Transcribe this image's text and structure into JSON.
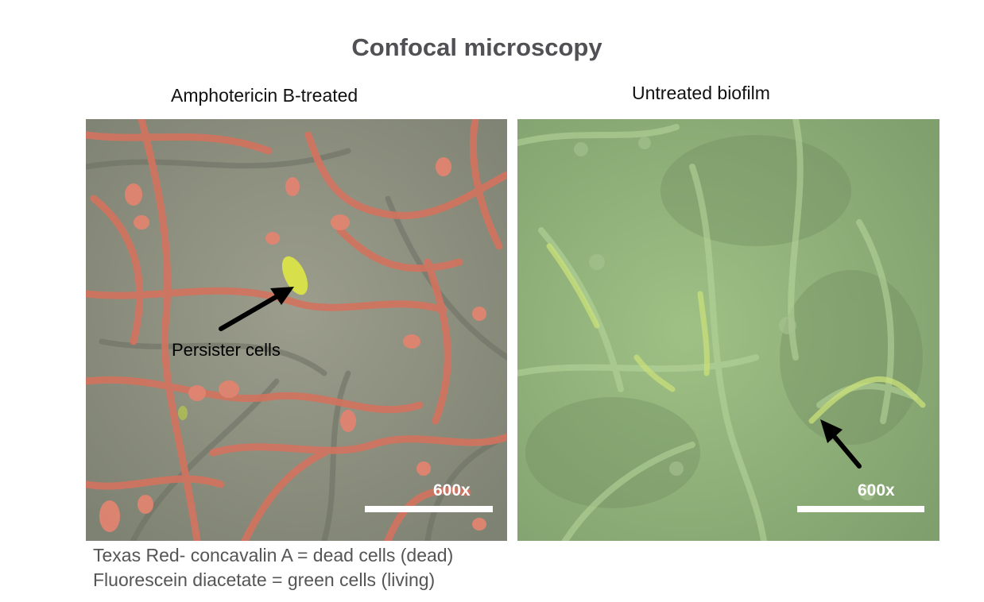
{
  "figure": {
    "title": "Confocal microscopy",
    "panels": [
      {
        "label": "Amphotericin B-treated",
        "scale_label": "600x",
        "annotation": "Persister cells",
        "tint": "#c9705f"
      },
      {
        "label": "Untreated biofilm",
        "scale_label": "600x",
        "tint": "#a9d98a"
      }
    ],
    "legend": [
      "Texas Red- concavalin A = dead cells (dead)",
      "Fluorescein diacetate = green cells (living)"
    ]
  }
}
